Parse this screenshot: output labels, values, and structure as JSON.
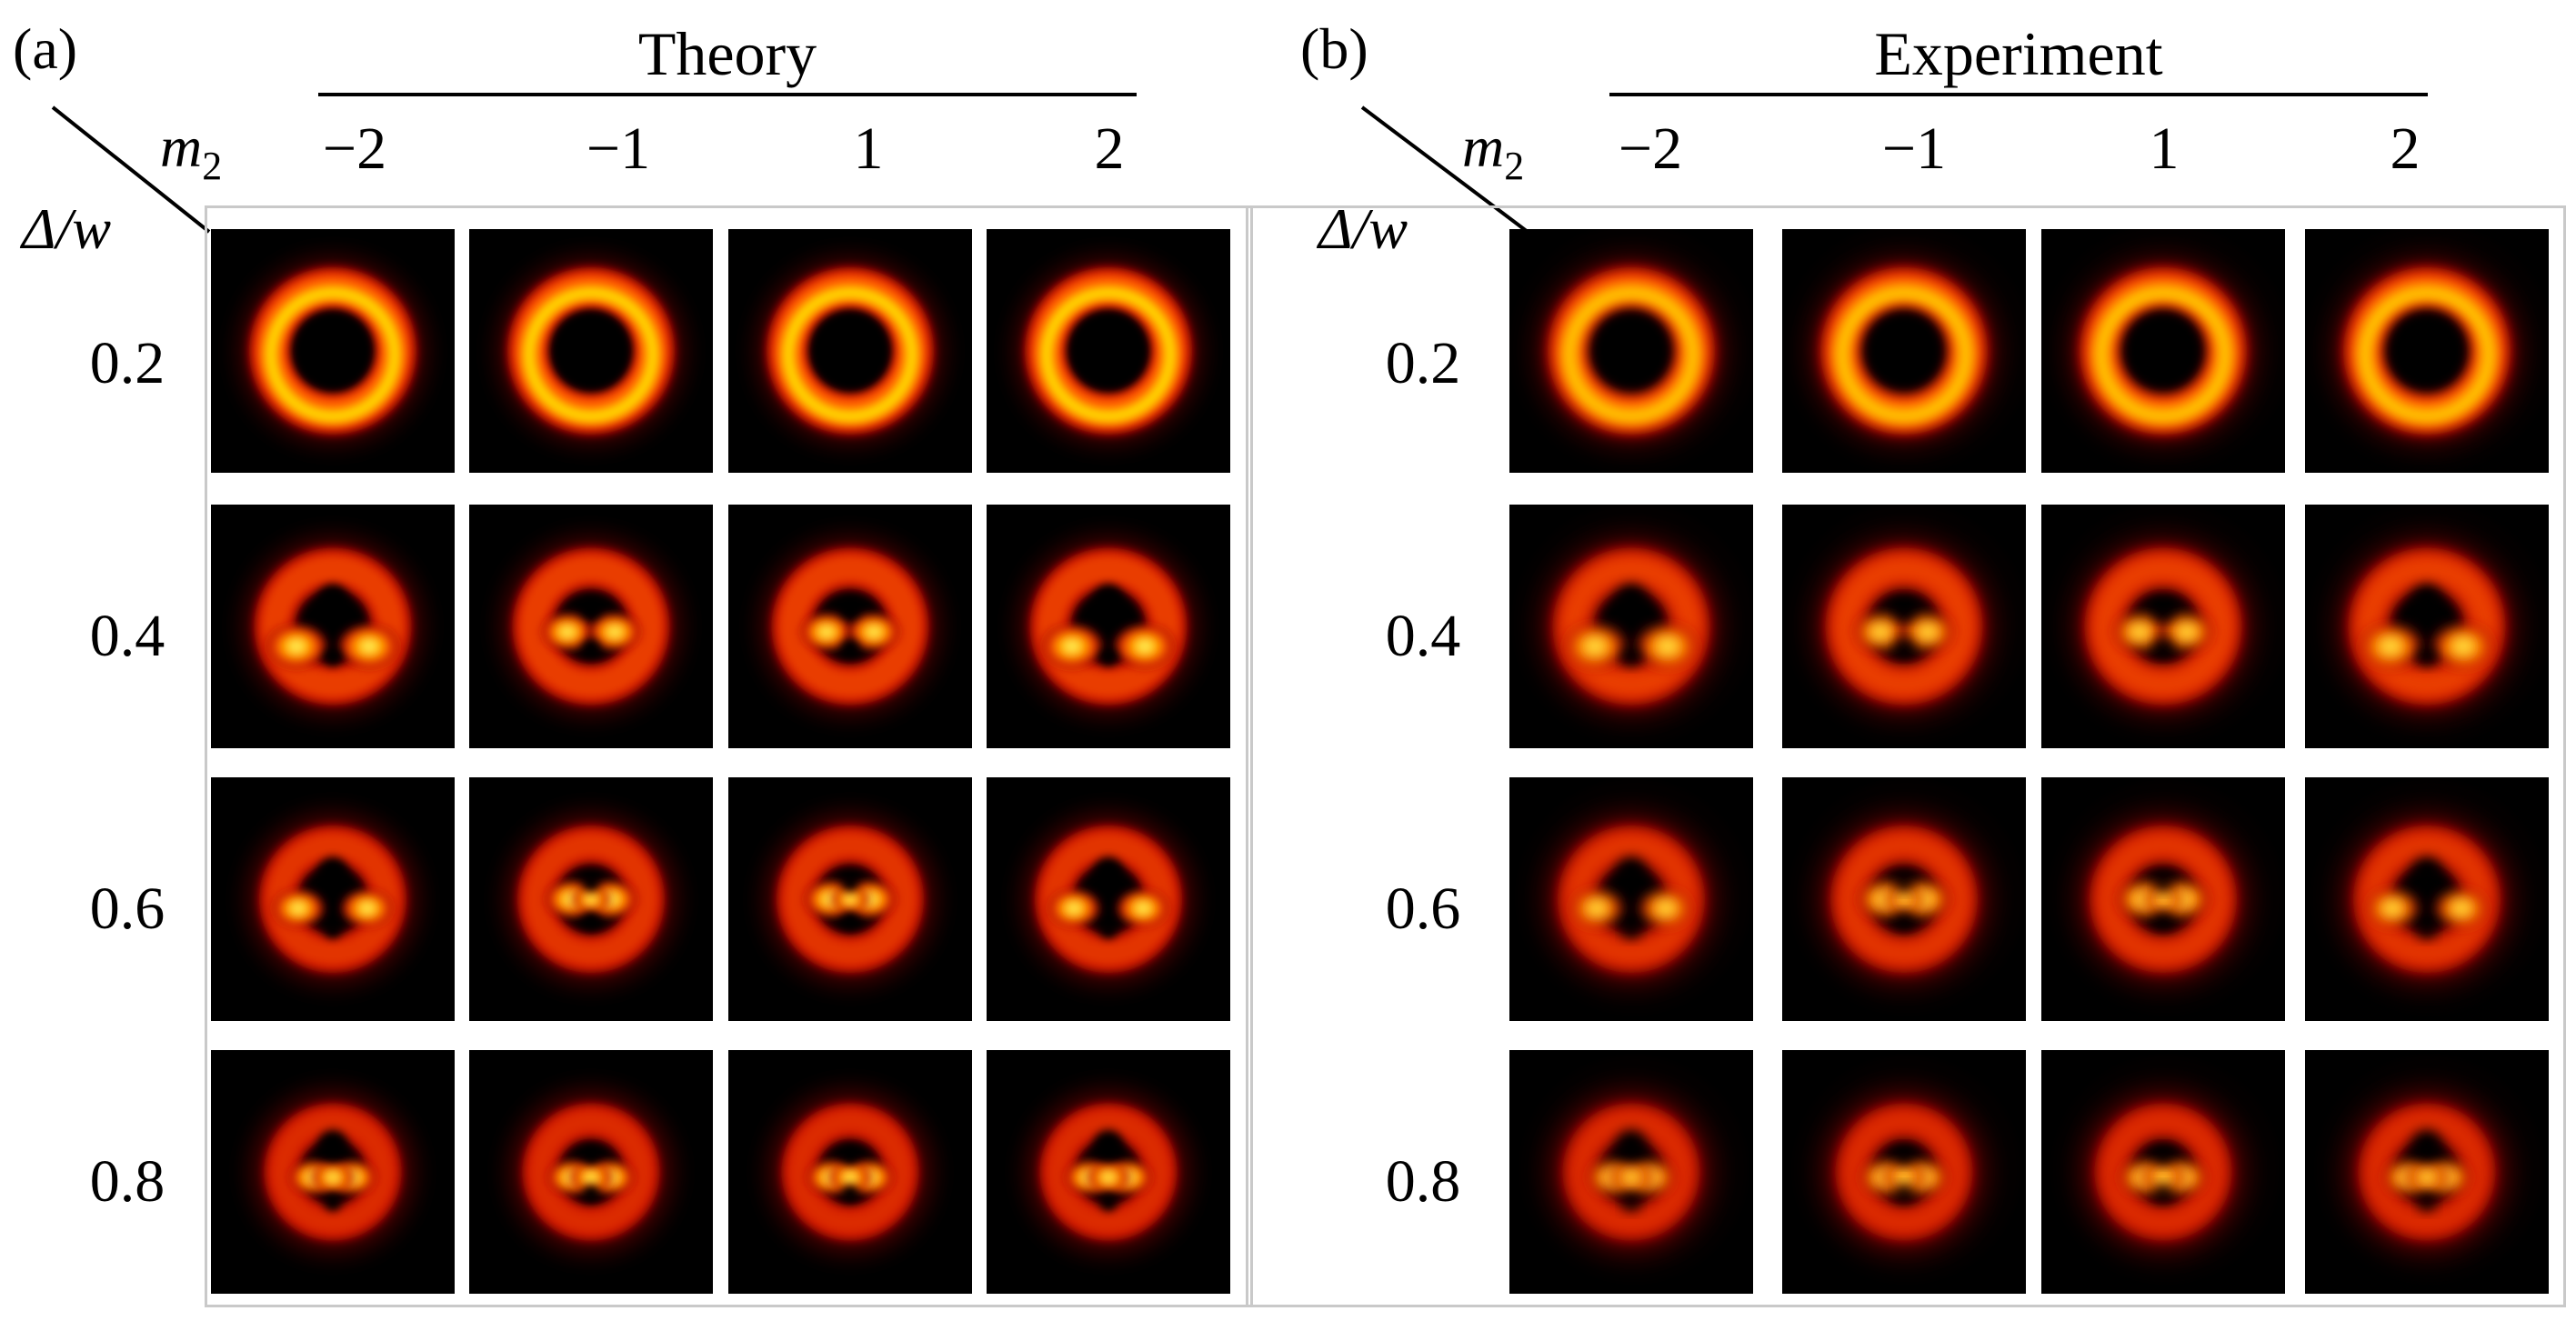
{
  "panels": [
    {
      "tag": "(a)",
      "header": "Theory",
      "col_axis_label": "m",
      "col_axis_sub": "2",
      "row_axis_label": "Δ/w",
      "columns": [
        "−2",
        "−1",
        "1",
        "2"
      ],
      "rows": [
        "0.2",
        "0.4",
        "0.6",
        "0.8"
      ],
      "image_style": "simulated"
    },
    {
      "tag": "(b)",
      "header": "Experiment",
      "col_axis_label": "m",
      "col_axis_sub": "2",
      "row_axis_label": "Δ/w",
      "columns": [
        "−2",
        "−1",
        "1",
        "2"
      ],
      "rows": [
        "0.2",
        "0.4",
        "0.6",
        "0.8"
      ],
      "image_style": "measured"
    }
  ],
  "colormap": [
    "#000000",
    "#5a0000",
    "#c41000",
    "#ff5a00",
    "#ffd400",
    "#ffff9a"
  ]
}
